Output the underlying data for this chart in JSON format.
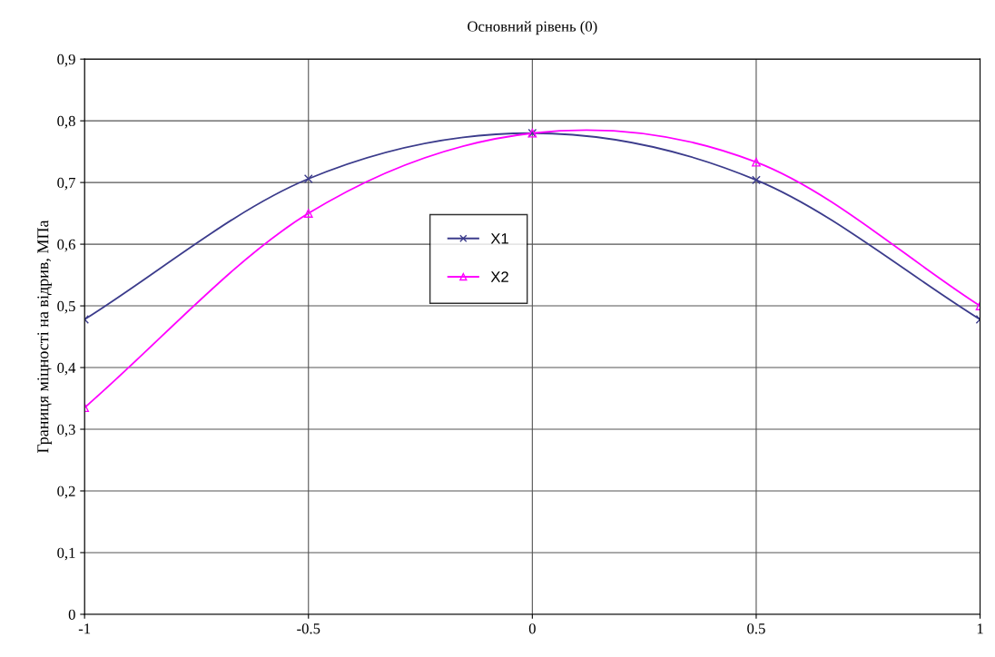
{
  "chart_data": {
    "type": "line",
    "title": "Основний рівень (0)",
    "ylabel": "Границя міцності на відрив, МПа",
    "x": [
      -1,
      -0.5,
      0,
      0.5,
      1
    ],
    "series": [
      {
        "name": "X1",
        "color": "#3c3c8c",
        "marker": "cross",
        "values": [
          0.478,
          0.706,
          0.78,
          0.704,
          0.478
        ]
      },
      {
        "name": "X2",
        "color": "#ff00ff",
        "marker": "triangle",
        "values": [
          0.335,
          0.65,
          0.78,
          0.733,
          0.5
        ]
      }
    ],
    "xlim": [
      -1,
      1
    ],
    "xticks": [
      -1,
      -0.5,
      0,
      0.5,
      1
    ],
    "ylim": [
      0,
      0.9
    ],
    "yticks": [
      {
        "value": 0,
        "label": "0"
      },
      {
        "value": 0.1,
        "label": "0,1"
      },
      {
        "value": 0.2,
        "label": "0,2"
      },
      {
        "value": 0.3,
        "label": "0,3"
      },
      {
        "value": 0.4,
        "label": "0,4"
      },
      {
        "value": 0.5,
        "label": "0,5"
      },
      {
        "value": 0.6,
        "label": "0,6"
      },
      {
        "value": 0.7,
        "label": "0,7"
      },
      {
        "value": 0.8,
        "label": "0,8"
      },
      {
        "value": 0.9,
        "label": "0,9"
      }
    ],
    "grid": true,
    "legend": "center",
    "line_style": "solid"
  }
}
